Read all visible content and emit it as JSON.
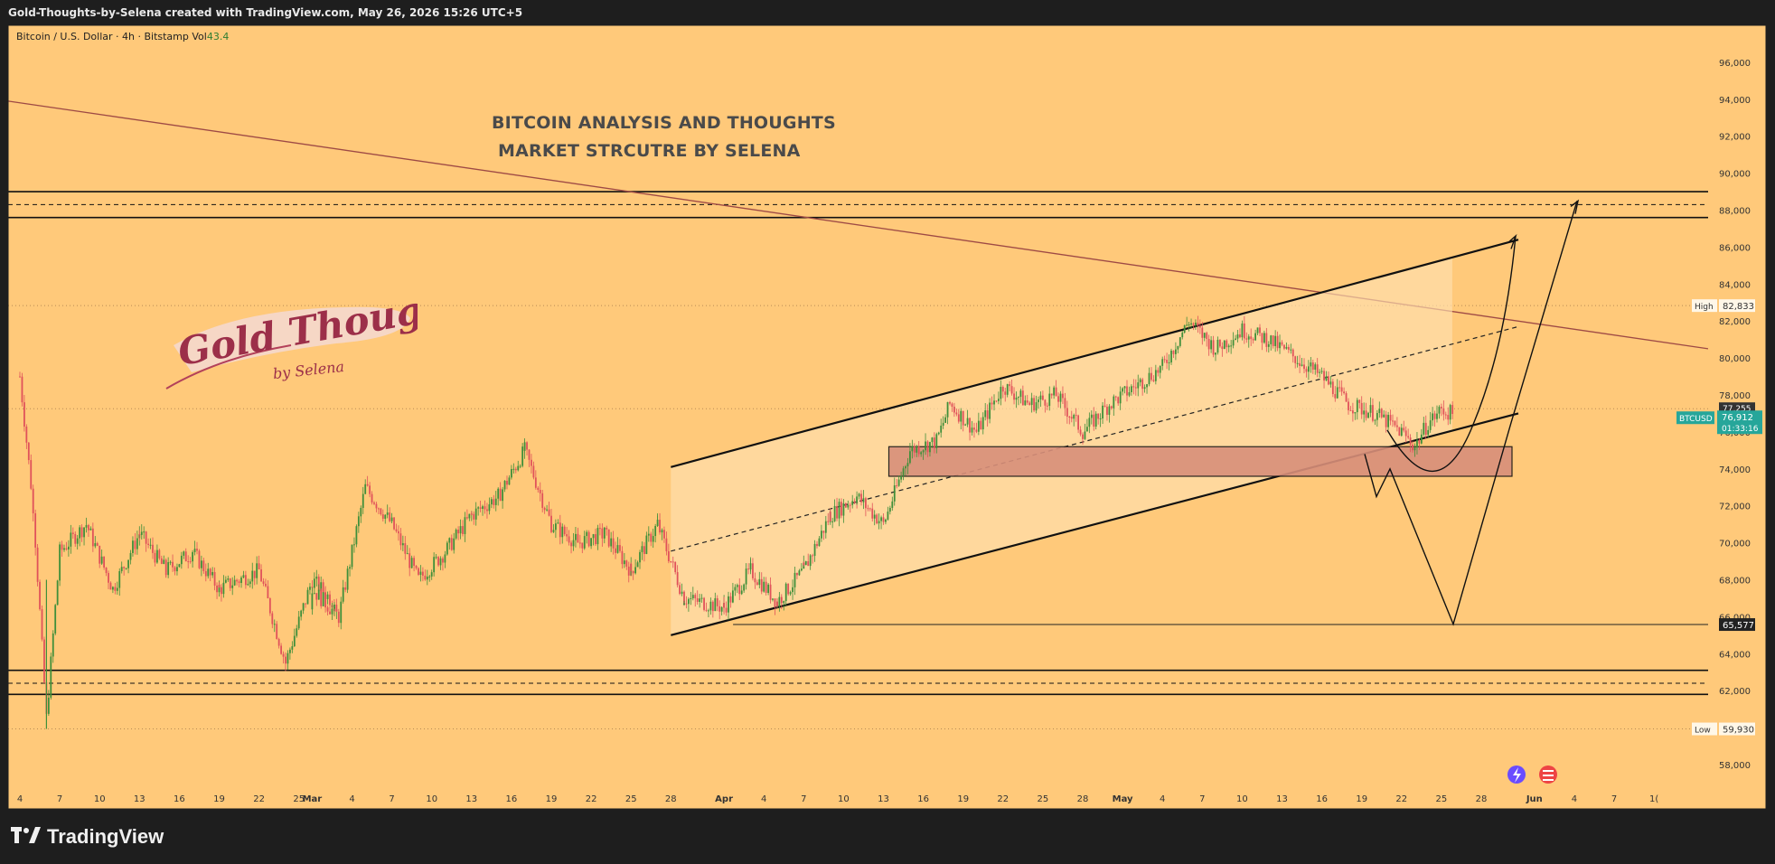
{
  "header": {
    "caption": "Gold-Thoughts-by-Selena created with TradingView.com, May 26, 2026 15:26 UTC+5"
  },
  "legend": {
    "symbol": "Bitcoin / U.S. Dollar · 4h · Bitstamp",
    "vol_label": "Vol",
    "vol_value": "43.4"
  },
  "annotations": {
    "title_line1": "BITCOIN ANALYSIS AND THOUGHTS",
    "title_line2": "MARKET STRCUTRE BY SELENA",
    "watermark_line1": "Gold Thoughts",
    "watermark_line2": "by Selena"
  },
  "footer": {
    "brand": "TradingView"
  },
  "colors": {
    "background": "#ffc97a",
    "candle_up": "#3f8f3a",
    "candle_down": "#e0525a",
    "channel_fill": "#ffe1b0",
    "demand_zone": "#d88f7a",
    "trendline": "#9e4a45",
    "price_tag": "#26a69a",
    "frame": "#1e1e1e"
  },
  "chart_data": {
    "type": "candlestick",
    "timeframe": "4h",
    "y_axis": {
      "range": [
        57000,
        97500
      ],
      "ticks": [
        58000,
        60000,
        62000,
        64000,
        66000,
        68000,
        70000,
        72000,
        74000,
        76000,
        78000,
        80000,
        82000,
        84000,
        86000,
        88000,
        90000,
        92000,
        94000,
        96000
      ],
      "tick_labels": [
        "58,000",
        "60,000",
        "62,000",
        "64,000",
        "66,000",
        "68,000",
        "70,000",
        "72,000",
        "74,000",
        "76,000",
        "78,000",
        "80,000",
        "82,000",
        "84,000",
        "86,000",
        "88,000",
        "90,000",
        "92,000",
        "94,000",
        "96,000"
      ]
    },
    "x_axis": {
      "ticks": [
        "Feb 4",
        "Feb 7",
        "Feb 10",
        "Feb 13",
        "Feb 16",
        "Feb 19",
        "Feb 22",
        "Feb 25",
        "Mar 1",
        "Mar 4",
        "Mar 7",
        "Mar 10",
        "Mar 13",
        "Mar 16",
        "Mar 19",
        "Mar 22",
        "Mar 25",
        "Mar 28",
        "Apr 1",
        "Apr 4",
        "Apr 7",
        "Apr 10",
        "Apr 13",
        "Apr 16",
        "Apr 19",
        "Apr 22",
        "Apr 25",
        "Apr 28",
        "May 1",
        "May 4",
        "May 7",
        "May 10",
        "May 13",
        "May 16",
        "May 19",
        "May 22",
        "May 25",
        "May 28",
        "Jun 1",
        "Jun 4",
        "Jun 7",
        "Jun 10"
      ],
      "tick_labels": [
        "4",
        "7",
        "10",
        "13",
        "16",
        "19",
        "22",
        "25",
        "Mar",
        "4",
        "7",
        "10",
        "13",
        "16",
        "19",
        "22",
        "25",
        "28",
        "Apr",
        "4",
        "7",
        "10",
        "13",
        "16",
        "19",
        "22",
        "25",
        "28",
        "May",
        "4",
        "7",
        "10",
        "13",
        "16",
        "19",
        "22",
        "25",
        "28",
        "Jun",
        "4",
        "7",
        "1("
      ]
    },
    "price_path": [
      [
        "Feb 4",
        79000
      ],
      [
        "Feb 5",
        72000
      ],
      [
        "Feb 6",
        60500
      ],
      [
        "Feb 7",
        69500
      ],
      [
        "Feb 9",
        71000
      ],
      [
        "Feb 11",
        67500
      ],
      [
        "Feb 13",
        70500
      ],
      [
        "Feb 15",
        68500
      ],
      [
        "Feb 17",
        69500
      ],
      [
        "Feb 19",
        67500
      ],
      [
        "Feb 22",
        68500
      ],
      [
        "Feb 24",
        63500
      ],
      [
        "Feb 26",
        68000
      ],
      [
        "Feb 28",
        66500
      ],
      [
        "Mar 1",
        67500
      ],
      [
        "Mar 3",
        66000
      ],
      [
        "Mar 5",
        73000
      ],
      [
        "Mar 7",
        71000
      ],
      [
        "Mar 9",
        68000
      ],
      [
        "Mar 11",
        69500
      ],
      [
        "Mar 13",
        71500
      ],
      [
        "Mar 15",
        72500
      ],
      [
        "Mar 17",
        75000
      ],
      [
        "Mar 19",
        71000
      ],
      [
        "Mar 21",
        70000
      ],
      [
        "Mar 23",
        70500
      ],
      [
        "Mar 25",
        68500
      ],
      [
        "Mar 27",
        71000
      ],
      [
        "Mar 29",
        67000
      ],
      [
        "Apr 1",
        66500
      ],
      [
        "Apr 3",
        68500
      ],
      [
        "Apr 5",
        66800
      ],
      [
        "Apr 7",
        68500
      ],
      [
        "Apr 9",
        71500
      ],
      [
        "Apr 11",
        72500
      ],
      [
        "Apr 13",
        71000
      ],
      [
        "Apr 15",
        75000
      ],
      [
        "Apr 17",
        75500
      ],
      [
        "Apr 18",
        77500
      ],
      [
        "Apr 20",
        76000
      ],
      [
        "Apr 22",
        78500
      ],
      [
        "Apr 24",
        77500
      ],
      [
        "Apr 26",
        78000
      ],
      [
        "Apr 28",
        76000
      ],
      [
        "Apr 30",
        77500
      ],
      [
        "May 2",
        78500
      ],
      [
        "May 4",
        79500
      ],
      [
        "May 6",
        82000
      ],
      [
        "May 8",
        80500
      ],
      [
        "May 10",
        81500
      ],
      [
        "May 12",
        81000
      ],
      [
        "May 14",
        80000
      ],
      [
        "May 16",
        79000
      ],
      [
        "May 18",
        77500
      ],
      [
        "May 20",
        77000
      ],
      [
        "May 22",
        76000
      ],
      [
        "May 23",
        75200
      ],
      [
        "May 24",
        76500
      ],
      [
        "May 25",
        77200
      ],
      [
        "May 26",
        76912
      ]
    ],
    "levels": {
      "high_label": "High",
      "high_value": "82,833",
      "low_label": "Low",
      "low_value": "59,930",
      "support_value": "65,577",
      "symbol_tag": "BTCUSD",
      "last_price": "76,912",
      "prev_price": "77,255",
      "countdown": "01:33:16"
    },
    "bands": {
      "upper_resistance": [
        87600,
        89000
      ],
      "upper_resistance_mid": 88300,
      "lower_support": [
        61800,
        63100
      ],
      "lower_support_mid": 62400,
      "demand_zone": [
        73600,
        75200
      ]
    }
  }
}
